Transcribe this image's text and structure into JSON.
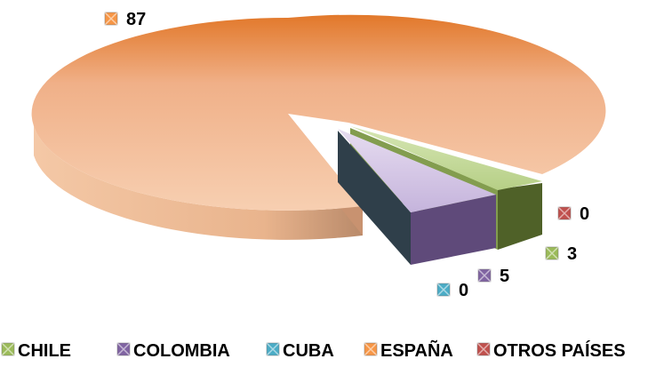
{
  "chart_data": {
    "type": "pie",
    "style": "3d-exploded",
    "categories": [
      "CHILE",
      "COLOMBIA",
      "CUBA",
      "ESPAÑA",
      "OTROS PAÍSES"
    ],
    "values": [
      3,
      5,
      0,
      87,
      0
    ],
    "colors": {
      "CHILE": "#9bbb59",
      "COLOMBIA": "#8064a2",
      "CUBA": "#4bacc6",
      "ESPAÑA": "#f79646",
      "OTROS PAÍSES": "#c0504d"
    },
    "legend_position": "bottom"
  }
}
